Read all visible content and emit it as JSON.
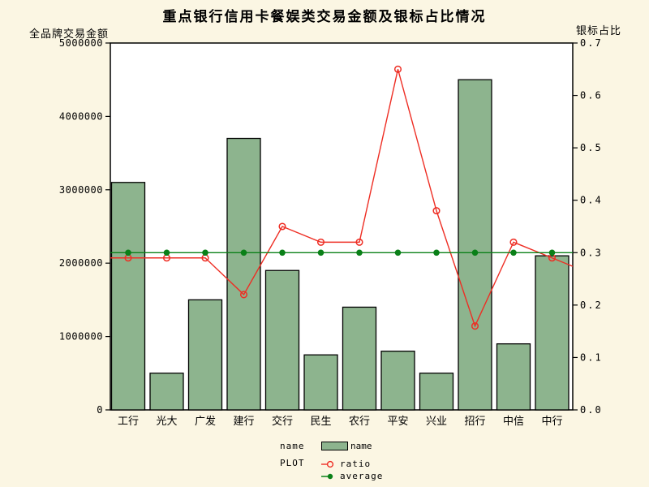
{
  "title": "重点银行信用卡餐娱类交易金额及银标占比情况",
  "left_axis_title": "全品牌交易金额",
  "right_axis_title": "银标占比",
  "legend": {
    "bar_group_label": "name",
    "bar_item_label": "name",
    "plot_group_label": "PLOT",
    "ratio_label": "ratio",
    "average_label": "average"
  },
  "colors": {
    "background": "#FBF6E3",
    "plot_background": "#FFFFFF",
    "bar_fill": "#8DB48E",
    "bar_border": "#000000",
    "ratio_color": "#EE2E24",
    "average_color": "#0A8018",
    "frame_color": "#000000",
    "text_color": "#000000"
  },
  "chart_data": {
    "type": "bar",
    "subtype": "bar-line-combo",
    "title": "重点银行信用卡餐娱类交易金额及银标占比情况",
    "categories": [
      "工行",
      "光大",
      "广发",
      "建行",
      "交行",
      "民生",
      "农行",
      "平安",
      "兴业",
      "招行",
      "中信",
      "中行"
    ],
    "series": [
      {
        "name": "name",
        "type": "bar",
        "axis": "left",
        "values": [
          3100000,
          500000,
          1500000,
          3700000,
          1900000,
          750000,
          1400000,
          800000,
          500000,
          4500000,
          900000,
          2100000
        ]
      },
      {
        "name": "ratio",
        "type": "line",
        "axis": "right",
        "marker": "open-circle",
        "values": [
          0.29,
          0.29,
          0.29,
          0.22,
          0.35,
          0.32,
          0.32,
          0.65,
          0.38,
          0.16,
          0.32,
          0.29
        ]
      },
      {
        "name": "average",
        "type": "line",
        "axis": "right",
        "marker": "filled-circle",
        "values": [
          0.3,
          0.3,
          0.3,
          0.3,
          0.3,
          0.3,
          0.3,
          0.3,
          0.3,
          0.3,
          0.3,
          0.3
        ]
      }
    ],
    "left_axis": {
      "label": "全品牌交易金额",
      "min": 0,
      "max": 5000000,
      "tick_interval": 1000000,
      "tick_labels": [
        "0",
        "1000000",
        "2000000",
        "3000000",
        "4000000",
        "5000000"
      ]
    },
    "right_axis": {
      "label": "银标占比",
      "min": 0,
      "max": 0.7,
      "tick_interval": 0.1,
      "tick_labels": [
        "0.0",
        "0.1",
        "0.2",
        "0.3",
        "0.4",
        "0.5",
        "0.6",
        "0.7"
      ]
    },
    "grid": false,
    "legend_position": "bottom"
  }
}
